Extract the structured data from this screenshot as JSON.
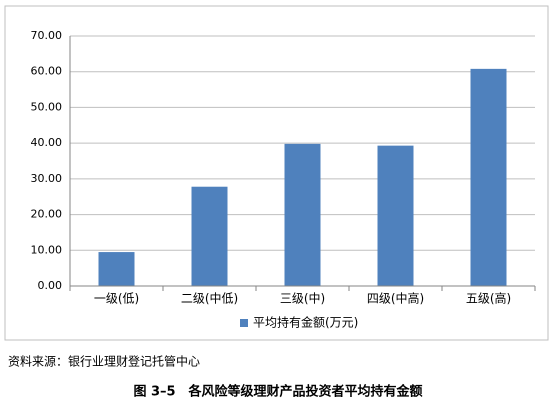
{
  "chart_data": {
    "type": "bar",
    "categories": [
      "一级(低)",
      "二级(中低)",
      "三级(中)",
      "四级(中高)",
      "五级(高)"
    ],
    "series": [
      {
        "name": "平均持有金额(万元)",
        "color": "#4f81bd",
        "values": [
          9.5,
          27.8,
          39.8,
          39.3,
          60.8
        ]
      }
    ],
    "ylim": [
      0,
      70
    ],
    "yticks": [
      {
        "value": 0,
        "label": "0.00"
      },
      {
        "value": 10,
        "label": "10.00"
      },
      {
        "value": 20,
        "label": "20.00"
      },
      {
        "value": 30,
        "label": "30.00"
      },
      {
        "value": 40,
        "label": "40.00"
      },
      {
        "value": 50,
        "label": "50.00"
      },
      {
        "value": 60,
        "label": "60.00"
      },
      {
        "value": 70,
        "label": "70.00"
      }
    ],
    "grid": true,
    "legend": "bottom"
  },
  "source": "资料来源：银行业理财登记托管中心",
  "caption": "图 3–5　各风险等级理财产品投资者平均持有金额"
}
